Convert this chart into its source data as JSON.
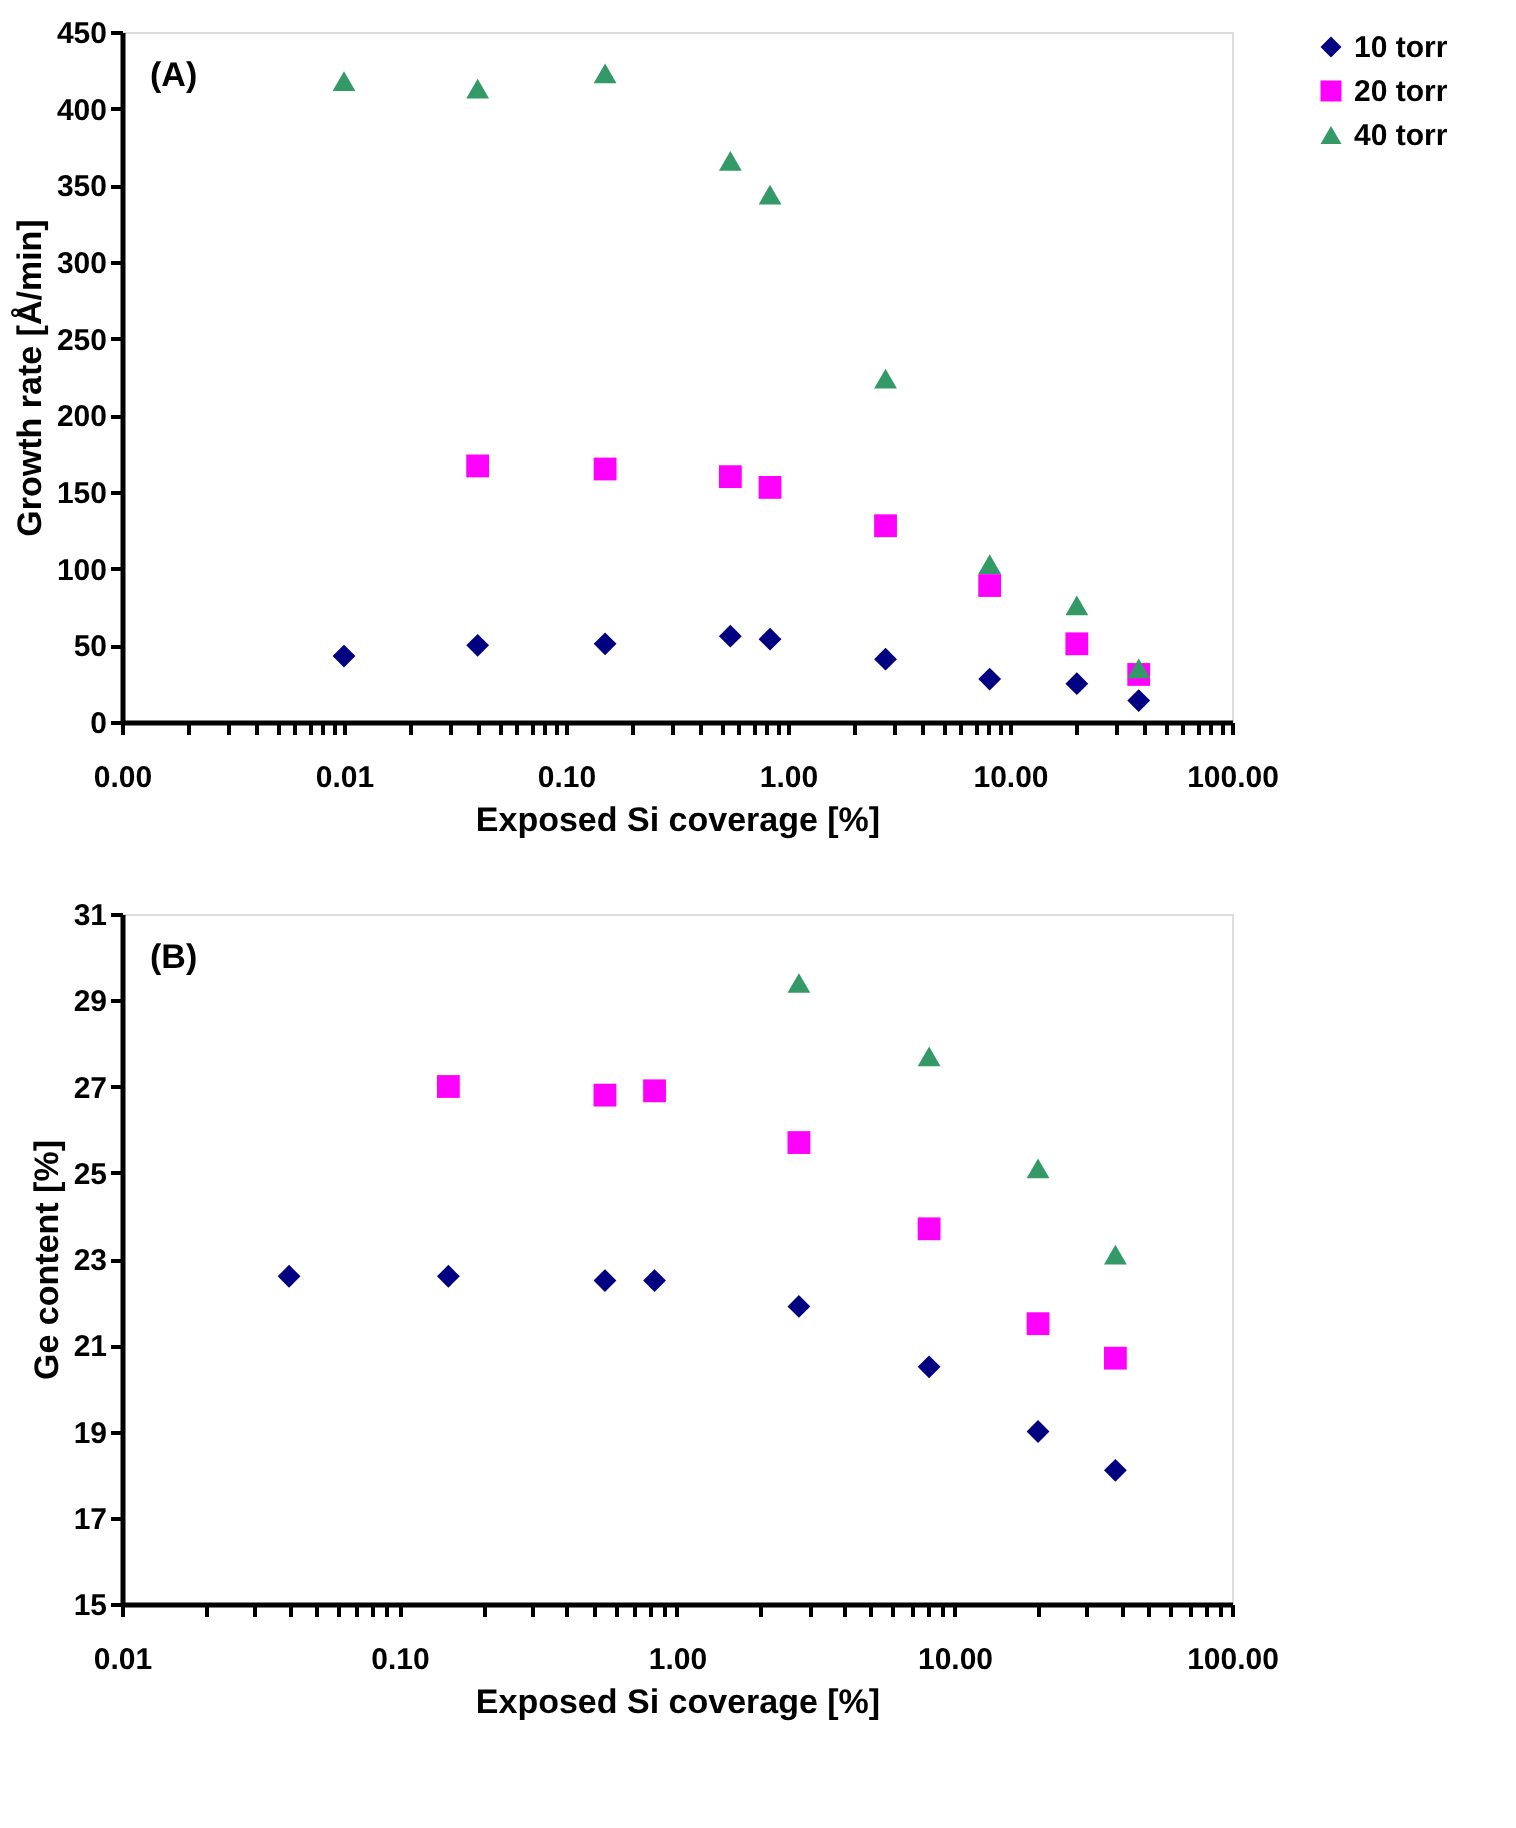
{
  "chart_data": [
    {
      "type": "scatter",
      "annotations": [
        "(A)"
      ],
      "xlabel": "Exposed Si coverage [%]",
      "ylabel": "Growth rate [Å/min]",
      "log": "x",
      "legend": "right",
      "grid": false,
      "xlim": [
        0.001,
        100
      ],
      "xticks": [
        {
          "value": 0.001,
          "label": "0.00"
        },
        {
          "value": 0.002,
          "label": null
        },
        {
          "value": 0.003,
          "label": null
        },
        {
          "value": 0.004,
          "label": null
        },
        {
          "value": 0.005,
          "label": null
        },
        {
          "value": 0.006,
          "label": null
        },
        {
          "value": 0.007,
          "label": null
        },
        {
          "value": 0.008,
          "label": null
        },
        {
          "value": 0.009,
          "label": null
        },
        {
          "value": 0.01,
          "label": "0.01"
        },
        {
          "value": 0.02,
          "label": null
        },
        {
          "value": 0.03,
          "label": null
        },
        {
          "value": 0.04,
          "label": null
        },
        {
          "value": 0.05,
          "label": null
        },
        {
          "value": 0.06,
          "label": null
        },
        {
          "value": 0.07,
          "label": null
        },
        {
          "value": 0.08,
          "label": null
        },
        {
          "value": 0.09,
          "label": null
        },
        {
          "value": 0.1,
          "label": "0.10"
        },
        {
          "value": 0.2,
          "label": null
        },
        {
          "value": 0.3,
          "label": null
        },
        {
          "value": 0.4,
          "label": null
        },
        {
          "value": 0.5,
          "label": null
        },
        {
          "value": 0.6,
          "label": null
        },
        {
          "value": 0.7,
          "label": null
        },
        {
          "value": 0.8,
          "label": null
        },
        {
          "value": 0.9,
          "label": null
        },
        {
          "value": 1,
          "label": "1.00"
        },
        {
          "value": 2,
          "label": null
        },
        {
          "value": 3,
          "label": null
        },
        {
          "value": 4,
          "label": null
        },
        {
          "value": 5,
          "label": null
        },
        {
          "value": 6,
          "label": null
        },
        {
          "value": 7,
          "label": null
        },
        {
          "value": 8,
          "label": null
        },
        {
          "value": 9,
          "label": null
        },
        {
          "value": 10,
          "label": "10.00"
        },
        {
          "value": 20,
          "label": null
        },
        {
          "value": 30,
          "label": null
        },
        {
          "value": 40,
          "label": null
        },
        {
          "value": 50,
          "label": null
        },
        {
          "value": 60,
          "label": null
        },
        {
          "value": 70,
          "label": null
        },
        {
          "value": 80,
          "label": null
        },
        {
          "value": 90,
          "label": null
        },
        {
          "value": 100,
          "label": "100.00"
        }
      ],
      "ylim": [
        0,
        450
      ],
      "yticks": [
        0,
        50,
        100,
        150,
        200,
        250,
        300,
        350,
        400,
        450
      ],
      "series": [
        {
          "name": "10 torr",
          "color": "#000080",
          "marker": "diamond",
          "x": [
            0.01,
            0.04,
            0.15,
            0.55,
            0.83,
            2.75,
            8.1,
            20,
            38
          ],
          "values": [
            43,
            50,
            51,
            56,
            54,
            41,
            28,
            25,
            14
          ]
        },
        {
          "name": "20 torr",
          "color": "#ff00ff",
          "marker": "square",
          "x": [
            0.04,
            0.15,
            0.55,
            0.83,
            2.75,
            8.1,
            20,
            38
          ],
          "values": [
            167,
            165,
            160,
            153,
            128,
            89,
            51,
            31
          ]
        },
        {
          "name": "40 torr",
          "color": "#339966",
          "marker": "triangle",
          "x": [
            0.01,
            0.04,
            0.15,
            0.55,
            0.83,
            2.75,
            8.1,
            20,
            38
          ],
          "values": [
            418,
            413,
            423,
            366,
            344,
            224,
            103,
            76,
            35
          ]
        }
      ]
    },
    {
      "type": "scatter",
      "annotations": [
        "(B)"
      ],
      "xlabel": "Exposed Si coverage [%]",
      "ylabel": "Ge content [%]",
      "log": "x",
      "legend": "right",
      "grid": false,
      "xlim": [
        0.01,
        100
      ],
      "xticks": [
        {
          "value": 0.01,
          "label": "0.01"
        },
        {
          "value": 0.02,
          "label": null
        },
        {
          "value": 0.03,
          "label": null
        },
        {
          "value": 0.04,
          "label": null
        },
        {
          "value": 0.05,
          "label": null
        },
        {
          "value": 0.06,
          "label": null
        },
        {
          "value": 0.07,
          "label": null
        },
        {
          "value": 0.08,
          "label": null
        },
        {
          "value": 0.09,
          "label": null
        },
        {
          "value": 0.1,
          "label": "0.10"
        },
        {
          "value": 0.2,
          "label": null
        },
        {
          "value": 0.3,
          "label": null
        },
        {
          "value": 0.4,
          "label": null
        },
        {
          "value": 0.5,
          "label": null
        },
        {
          "value": 0.6,
          "label": null
        },
        {
          "value": 0.7,
          "label": null
        },
        {
          "value": 0.8,
          "label": null
        },
        {
          "value": 0.9,
          "label": null
        },
        {
          "value": 1,
          "label": "1.00"
        },
        {
          "value": 2,
          "label": null
        },
        {
          "value": 3,
          "label": null
        },
        {
          "value": 4,
          "label": null
        },
        {
          "value": 5,
          "label": null
        },
        {
          "value": 6,
          "label": null
        },
        {
          "value": 7,
          "label": null
        },
        {
          "value": 8,
          "label": null
        },
        {
          "value": 9,
          "label": null
        },
        {
          "value": 10,
          "label": "10.00"
        },
        {
          "value": 20,
          "label": null
        },
        {
          "value": 30,
          "label": null
        },
        {
          "value": 40,
          "label": null
        },
        {
          "value": 50,
          "label": null
        },
        {
          "value": 60,
          "label": null
        },
        {
          "value": 70,
          "label": null
        },
        {
          "value": 80,
          "label": null
        },
        {
          "value": 90,
          "label": null
        },
        {
          "value": 100,
          "label": "100.00"
        }
      ],
      "ylim": [
        15,
        31
      ],
      "yticks": [
        15,
        17,
        19,
        21,
        23,
        25,
        27,
        29,
        31
      ],
      "series": [
        {
          "name": "10 torr",
          "color": "#000080",
          "marker": "diamond",
          "x": [
            0.04,
            0.15,
            0.55,
            0.83,
            2.75,
            8.1,
            20,
            38
          ],
          "values": [
            22.6,
            22.6,
            22.5,
            22.5,
            21.9,
            20.5,
            19.0,
            18.1
          ]
        },
        {
          "name": "20 torr",
          "color": "#ff00ff",
          "marker": "square",
          "x": [
            0.15,
            0.55,
            0.83,
            2.75,
            8.1,
            20,
            38
          ],
          "values": [
            27.0,
            26.8,
            26.9,
            25.7,
            23.7,
            21.5,
            20.7
          ]
        },
        {
          "name": "40 torr",
          "color": "#339966",
          "marker": "triangle",
          "x": [
            2.75,
            8.1,
            20,
            38
          ],
          "values": [
            29.4,
            27.7,
            25.1,
            23.1
          ]
        }
      ]
    }
  ]
}
